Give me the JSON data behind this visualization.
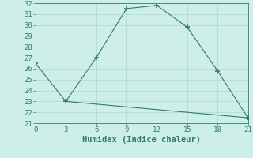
{
  "line1_x": [
    0,
    3,
    6,
    9,
    12,
    15,
    18,
    21
  ],
  "line1_y": [
    26.5,
    23.0,
    27.0,
    31.5,
    31.8,
    29.8,
    25.8,
    21.5
  ],
  "line2_x": [
    3,
    21
  ],
  "line2_y": [
    23.0,
    21.5
  ],
  "line_color": "#2e7d6e",
  "bg_color": "#cdeee9",
  "grid_color": "#aed8d0",
  "xlabel": "Humidex (Indice chaleur)",
  "xlim": [
    0,
    21
  ],
  "ylim": [
    21,
    32
  ],
  "xticks": [
    0,
    3,
    6,
    9,
    12,
    15,
    18,
    21
  ],
  "yticks": [
    21,
    22,
    23,
    24,
    25,
    26,
    27,
    28,
    29,
    30,
    31,
    32
  ],
  "marker": "+",
  "markersize": 4,
  "linewidth": 0.8,
  "tick_fontsize": 6.5,
  "xlabel_fontsize": 7.5
}
